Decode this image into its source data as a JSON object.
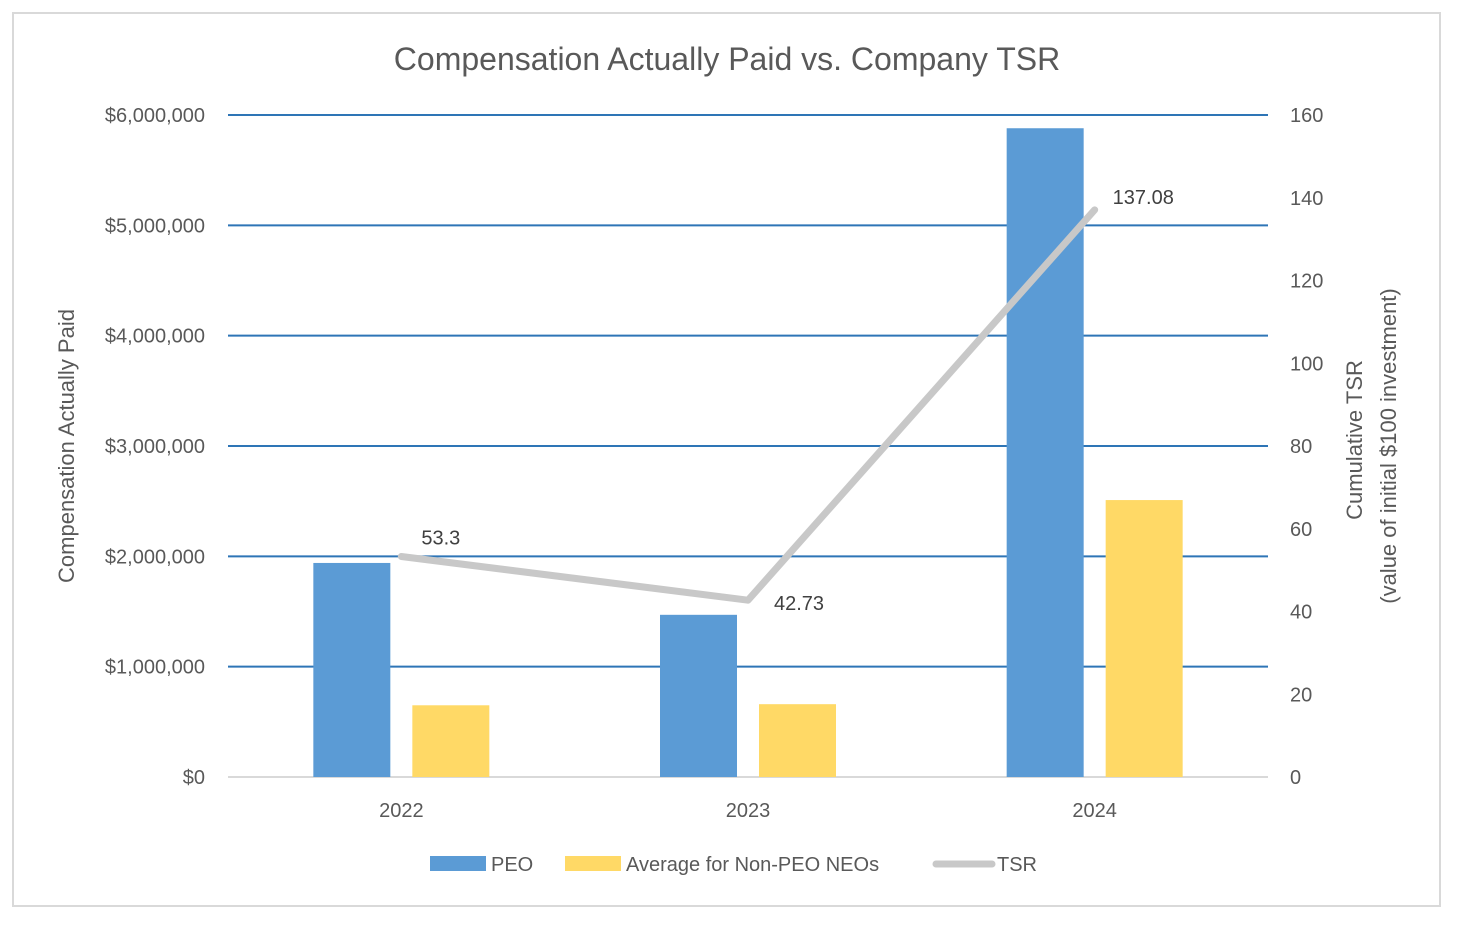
{
  "chart_data": {
    "type": "bar",
    "title": "Compensation Actually Paid vs. Company TSR",
    "categories": [
      "2022",
      "2023",
      "2024"
    ],
    "series": [
      {
        "name": "PEO",
        "type": "bar",
        "axis": "left",
        "values": [
          1940000,
          1470000,
          5880000
        ],
        "color": "#5B9BD5"
      },
      {
        "name": "Average for Non-PEO NEOs",
        "type": "bar",
        "axis": "left",
        "values": [
          650000,
          660000,
          2510000
        ],
        "color": "#FFD966"
      },
      {
        "name": "TSR",
        "type": "line",
        "axis": "right",
        "values": [
          53.3,
          42.73,
          137.08
        ],
        "labels": [
          "53.3",
          "42.73",
          "137.08"
        ],
        "color": "#C8C8C8"
      }
    ],
    "ylabel": "Compensation Actually Paid",
    "ylabel_right_line1": "Cumulative TSR",
    "ylabel_right_line2": "(value of initial $100 investment)",
    "ylim": [
      0,
      6000000
    ],
    "ylim_right": [
      0,
      160
    ],
    "yticks": [
      "$0",
      "$1,000,000",
      "$2,000,000",
      "$3,000,000",
      "$4,000,000",
      "$5,000,000",
      "$6,000,000"
    ],
    "yticks_right": [
      "0",
      "20",
      "40",
      "60",
      "80",
      "100",
      "120",
      "140",
      "160"
    ],
    "legend_position": "bottom",
    "gridline_color": "#2E75B6"
  }
}
